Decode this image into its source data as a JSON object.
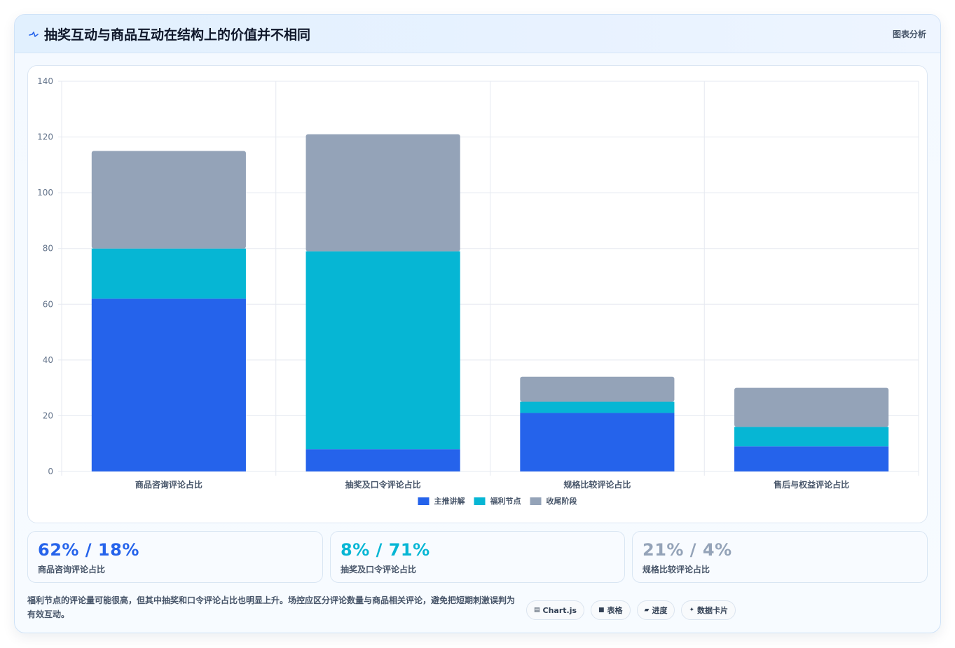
{
  "header": {
    "title": "抽奖互动与商品互动在结构上的价值并不相同",
    "tag": "图表分析",
    "icon": "pulse-line-icon"
  },
  "colors": {
    "primary": "#2563eb",
    "cyan": "#06b6d4",
    "gray": "#94a3b8"
  },
  "chart_data": {
    "type": "bar",
    "stacked": true,
    "categories": [
      "商品咨询评论占比",
      "抽奖及口令评论占比",
      "规格比较评论占比",
      "售后与权益评论占比"
    ],
    "series": [
      {
        "name": "主推讲解",
        "color": "#2563eb",
        "values": [
          62,
          8,
          21,
          9
        ]
      },
      {
        "name": "福利节点",
        "color": "#06b6d4",
        "values": [
          18,
          71,
          4,
          7
        ]
      },
      {
        "name": "收尾阶段",
        "color": "#94a3b8",
        "values": [
          35,
          42,
          9,
          14
        ]
      }
    ],
    "ylim": [
      0,
      140
    ],
    "yticks": [
      "0",
      "20",
      "40",
      "60",
      "80",
      "100",
      "120",
      "140"
    ],
    "grid": true,
    "legend": "bottom-center"
  },
  "stats": [
    {
      "value": "62% / 18%",
      "label": "商品咨询评论占比",
      "color": "#2563eb"
    },
    {
      "value": "8% / 71%",
      "label": "抽奖及口令评论占比",
      "color": "#06b6d4"
    },
    {
      "value": "21% / 4%",
      "label": "规格比较评论占比",
      "color": "#94a3b8"
    }
  ],
  "footnote": "福利节点的评论量可能很高，但其中抽奖和口令评论占比也明显上升。场控应区分评论数量与商品相关评论，避免把短期刺激误判为有效互动。",
  "chips": [
    {
      "icon": "chart-icon",
      "glyph": "▤",
      "label": "Chart.js"
    },
    {
      "icon": "table-icon",
      "glyph": "■",
      "label": "表格"
    },
    {
      "icon": "progress-icon",
      "glyph": "▰",
      "label": "进度"
    },
    {
      "icon": "sparkle-icon",
      "glyph": "✦",
      "label": "数据卡片"
    }
  ]
}
